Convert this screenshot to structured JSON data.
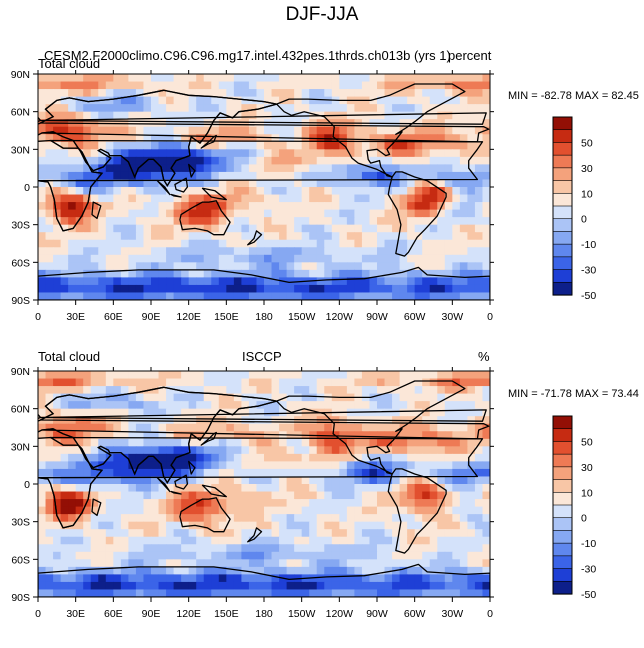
{
  "title": "DJF-JJA",
  "chart_data": [
    {
      "type": "heatmap",
      "title": "",
      "left_label": "Total cloud",
      "center_label": "CESM2.F2000climo.C96.C96.mg17.intel.432pes.1thrds.ch013b (yrs 1)",
      "right_label": "percent",
      "xlabel": "",
      "ylabel": "",
      "xlim": [
        0,
        360
      ],
      "ylim": [
        -90,
        90
      ],
      "x_ticks": [
        "0",
        "30E",
        "60E",
        "90E",
        "120E",
        "150E",
        "180",
        "150W",
        "120W",
        "90W",
        "60W",
        "30W",
        "0"
      ],
      "y_ticks": [
        "90N",
        "60N",
        "30N",
        "0",
        "30S",
        "60S",
        "90S"
      ],
      "min": -82.78,
      "max": 82.45,
      "minmax_text": "MIN = -82.78 MAX =  82.45",
      "colorbar_labels": [
        "50",
        "30",
        "10",
        "0",
        "-10",
        "-30",
        "-50"
      ],
      "grid": false,
      "legend": "colorbar right"
    },
    {
      "type": "heatmap",
      "title": "",
      "left_label": "Total cloud",
      "center_label": "ISCCP",
      "right_label": "%",
      "xlabel": "",
      "ylabel": "",
      "xlim": [
        0,
        360
      ],
      "ylim": [
        -90,
        90
      ],
      "x_ticks": [
        "0",
        "30E",
        "60E",
        "90E",
        "120E",
        "150E",
        "180",
        "150W",
        "120W",
        "90W",
        "60W",
        "30W",
        "0"
      ],
      "y_ticks": [
        "90N",
        "60N",
        "30N",
        "0",
        "30S",
        "60S",
        "90S"
      ],
      "min": -71.78,
      "max": 73.44,
      "minmax_text": "MIN = -71.78 MAX =  73.44",
      "colorbar_labels": [
        "50",
        "30",
        "10",
        "0",
        "-10",
        "-30",
        "-50"
      ],
      "grid": false,
      "legend": "colorbar right"
    }
  ],
  "colors": {
    "scale": [
      "#0d1f8a",
      "#1e3fd6",
      "#3b64e8",
      "#5f87ee",
      "#86a8f2",
      "#abc4f6",
      "#d4e2fa",
      "#fbe7d8",
      "#f8c6a6",
      "#f4a27c",
      "#ee7a55",
      "#e2502f",
      "#c62b12",
      "#930f05"
    ],
    "coast": "#000000"
  }
}
